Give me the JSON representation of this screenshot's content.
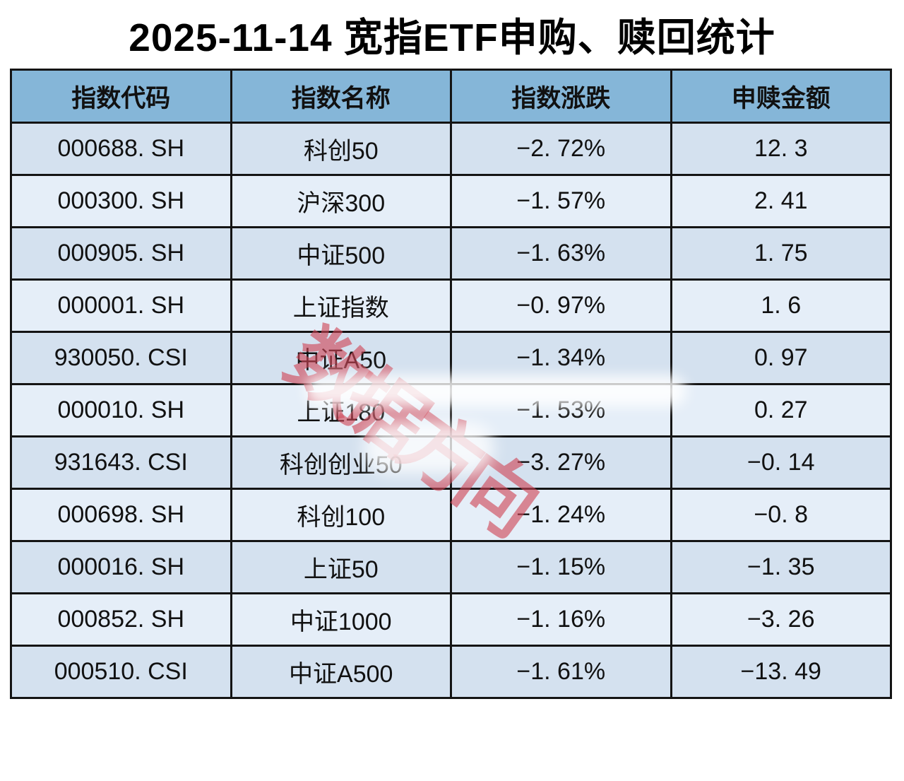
{
  "title": "2025-11-14 宽指ETF申购、赎回统计",
  "table": {
    "columns": [
      {
        "key": "code",
        "label": "指数代码"
      },
      {
        "key": "name",
        "label": "指数名称"
      },
      {
        "key": "change",
        "label": "指数涨跌"
      },
      {
        "key": "amount",
        "label": "申赎金额"
      }
    ],
    "rows": [
      {
        "code": "000688. SH",
        "name": "科创50",
        "change": "−2. 72%",
        "amount": "12. 3"
      },
      {
        "code": "000300. SH",
        "name": "沪深300",
        "change": "−1. 57%",
        "amount": "2. 41"
      },
      {
        "code": "000905. SH",
        "name": "中证500",
        "change": "−1. 63%",
        "amount": "1. 75"
      },
      {
        "code": "000001. SH",
        "name": "上证指数",
        "change": "−0. 97%",
        "amount": "1. 6"
      },
      {
        "code": "930050. CSI",
        "name": "中证A50",
        "change": "−1. 34%",
        "amount": "0. 97"
      },
      {
        "code": "000010. SH",
        "name": "上证180",
        "change": "−1. 53%",
        "amount": "0. 27"
      },
      {
        "code": "931643. CSI",
        "name": "科创创业50",
        "change": "−3. 27%",
        "amount": "−0. 14"
      },
      {
        "code": "000698. SH",
        "name": "科创100",
        "change": "−1. 24%",
        "amount": "−0. 8"
      },
      {
        "code": "000016. SH",
        "name": "上证50",
        "change": "−1. 15%",
        "amount": "−1. 35"
      },
      {
        "code": "000852. SH",
        "name": "中证1000",
        "change": "−1. 16%",
        "amount": "−3. 26"
      },
      {
        "code": "000510. CSI",
        "name": "中证A500",
        "change": "−1. 61%",
        "amount": "−13. 49"
      }
    ]
  },
  "watermark": {
    "text": "数据方向",
    "color": "#ce4456",
    "opacity": 0.62
  },
  "colors": {
    "header_bg": "#85b6d8",
    "row_odd_bg": "#d4e1ef",
    "row_even_bg": "#e5eef8",
    "border": "#141414",
    "text": "#111111",
    "page_bg": "#ffffff"
  }
}
